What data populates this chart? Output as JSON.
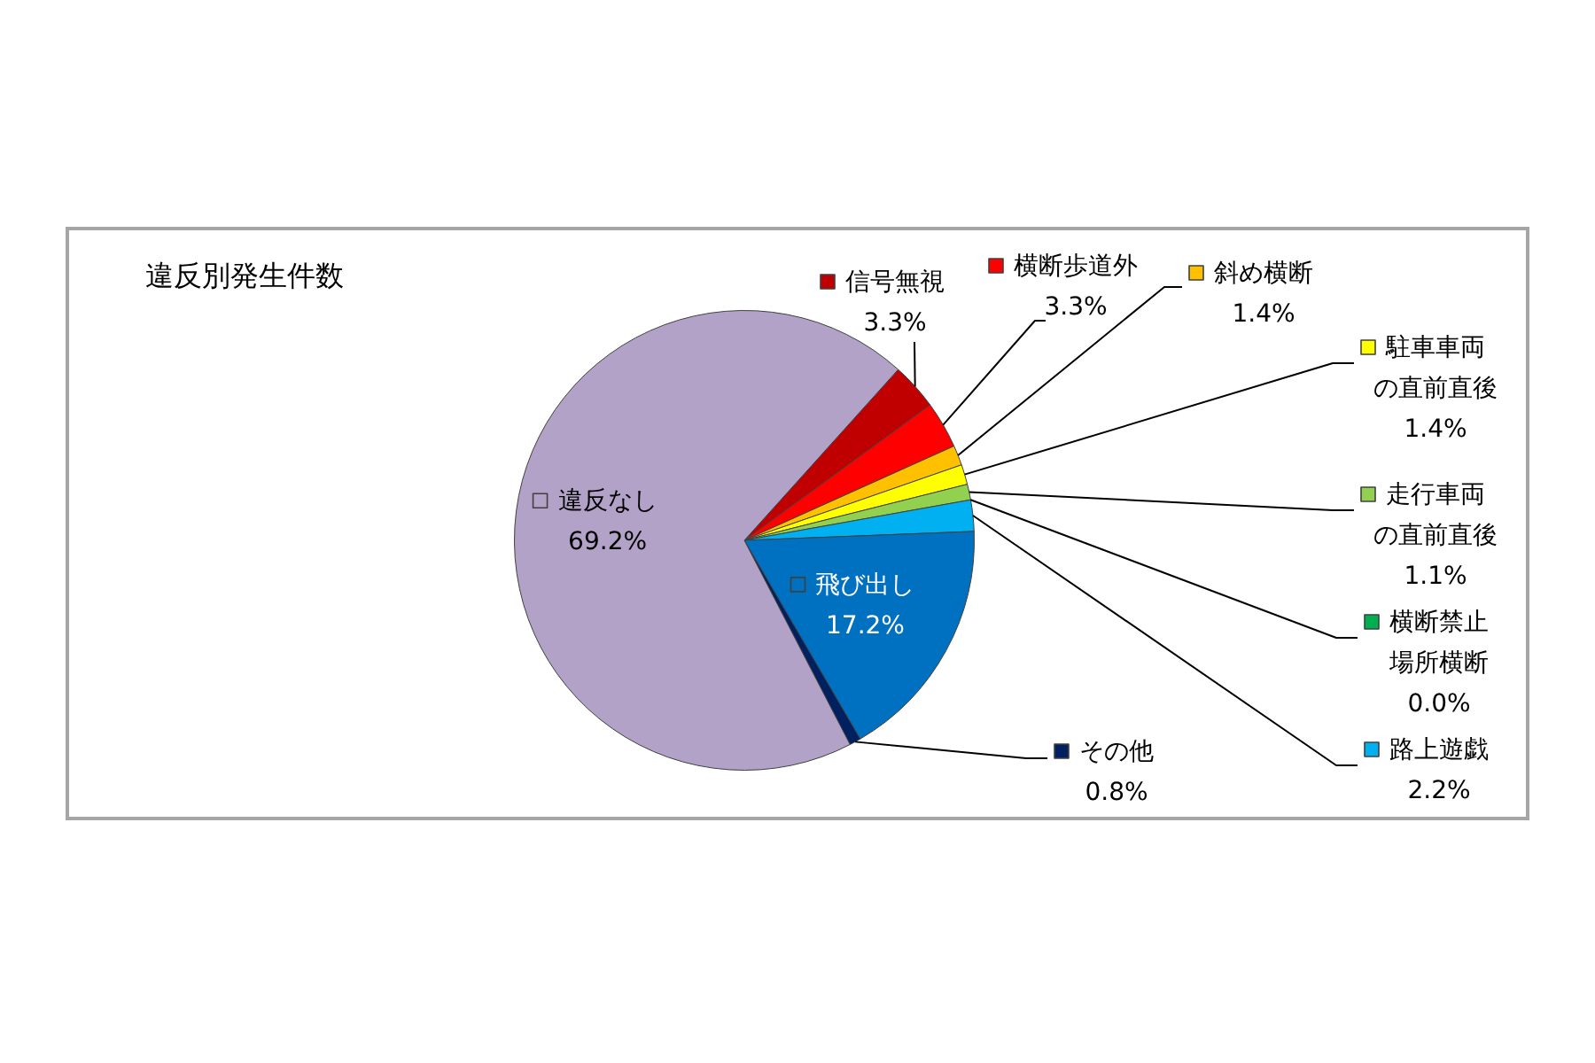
{
  "chart_data": {
    "type": "pie",
    "title": "違反別発生件数",
    "categories": [
      "信号無視",
      "横断歩道外",
      "斜め横断",
      "駐車車両の直前直後",
      "走行車両の直前直後",
      "横断禁止場所横断",
      "路上遊戯",
      "飛び出し",
      "その他",
      "違反なし"
    ],
    "values": [
      3.3,
      3.3,
      1.4,
      1.4,
      1.1,
      0.0,
      2.2,
      17.2,
      0.8,
      69.2
    ],
    "value_labels": [
      "3.3%",
      "3.3%",
      "1.4%",
      "1.4%",
      "1.1%",
      "0.0%",
      "2.2%",
      "17.2%",
      "0.8%",
      "69.2%"
    ],
    "colors": [
      "#c00000",
      "#ff0000",
      "#ffc000",
      "#ffff00",
      "#92d050",
      "#00b050",
      "#00b0f0",
      "#0070c0",
      "#002060",
      "#b3a2c7"
    ],
    "legend": "right"
  }
}
